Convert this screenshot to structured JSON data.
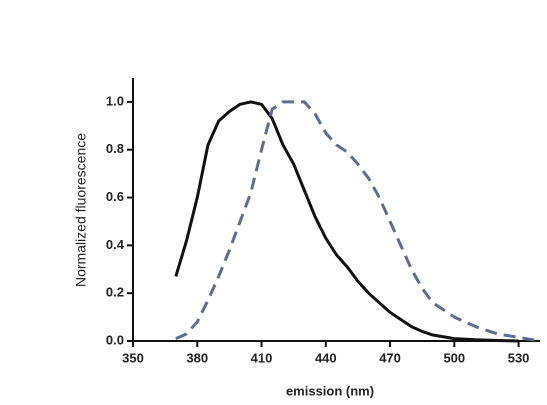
{
  "chart_data": {
    "type": "line",
    "xlabel": "emission (nm)",
    "ylabel": "Normalized fluorescence",
    "xlim": [
      350,
      540
    ],
    "ylim": [
      0,
      1.1
    ],
    "xticks": [
      350,
      380,
      410,
      440,
      470,
      500,
      530
    ],
    "yticks": [
      {
        "value": 0,
        "label": "0.0"
      },
      {
        "value": 0.2,
        "label": "0.2"
      },
      {
        "value": 0.4,
        "label": "0.4"
      },
      {
        "value": 0.6,
        "label": "0.6"
      },
      {
        "value": 0.8,
        "label": "0.8"
      },
      {
        "value": 1,
        "label": "1.0"
      }
    ],
    "series": [
      {
        "color": "#111111",
        "dash": false,
        "x": [
          370,
          375,
          380,
          385,
          390,
          395,
          400,
          405,
          410,
          415,
          420,
          425,
          430,
          435,
          440,
          445,
          450,
          455,
          460,
          465,
          470,
          475,
          480,
          485,
          490,
          500,
          510,
          520,
          530
        ],
        "values": [
          0.27,
          0.42,
          0.6,
          0.82,
          0.92,
          0.96,
          0.99,
          1.0,
          0.99,
          0.93,
          0.82,
          0.74,
          0.63,
          0.52,
          0.43,
          0.36,
          0.31,
          0.25,
          0.2,
          0.16,
          0.12,
          0.09,
          0.06,
          0.04,
          0.025,
          0.01,
          0.005,
          0.002,
          0
        ]
      },
      {
        "color": "#5f6b8f",
        "dash": true,
        "x": [
          370,
          375,
          380,
          385,
          390,
          395,
          400,
          405,
          410,
          415,
          420,
          425,
          430,
          435,
          440,
          445,
          450,
          455,
          460,
          465,
          470,
          475,
          480,
          485,
          490,
          500,
          510,
          520,
          530,
          540
        ],
        "values": [
          0.01,
          0.03,
          0.08,
          0.17,
          0.27,
          0.38,
          0.5,
          0.62,
          0.8,
          0.97,
          1.0,
          1.0,
          1.0,
          0.95,
          0.87,
          0.82,
          0.79,
          0.74,
          0.68,
          0.6,
          0.5,
          0.4,
          0.3,
          0.22,
          0.16,
          0.1,
          0.06,
          0.03,
          0.015,
          0
        ]
      }
    ]
  }
}
